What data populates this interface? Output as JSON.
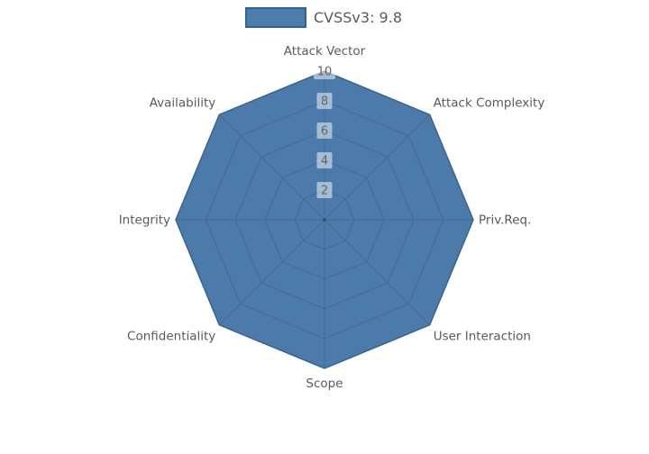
{
  "legend": {
    "label": "CVSSv3: 9.8",
    "swatch_fill": "#4e7dad",
    "swatch_border": "#35618e"
  },
  "chart_data": {
    "type": "radar",
    "title": "",
    "categories": [
      "Attack Vector",
      "Attack Complexity",
      "Priv.Req.",
      "User Interaction",
      "Scope",
      "Confidentiality",
      "Integrity",
      "Availability"
    ],
    "series": [
      {
        "name": "CVSSv3: 9.8",
        "values": [
          10,
          10,
          10,
          10,
          10,
          10,
          10,
          10
        ]
      }
    ],
    "rmax": 10,
    "rticks": [
      2,
      4,
      6,
      8,
      10
    ],
    "grid": true,
    "grid_shape": "polygon",
    "legend_position": "top-center",
    "colors": {
      "fill": "#4b7aab",
      "edge": "#33608d",
      "gridline": "#40688f",
      "center_dot": "#2e4e70",
      "label_text": "#595959",
      "tick_text": "#666666",
      "tick_bbox": "rgba(255,255,255,0.5)"
    }
  }
}
